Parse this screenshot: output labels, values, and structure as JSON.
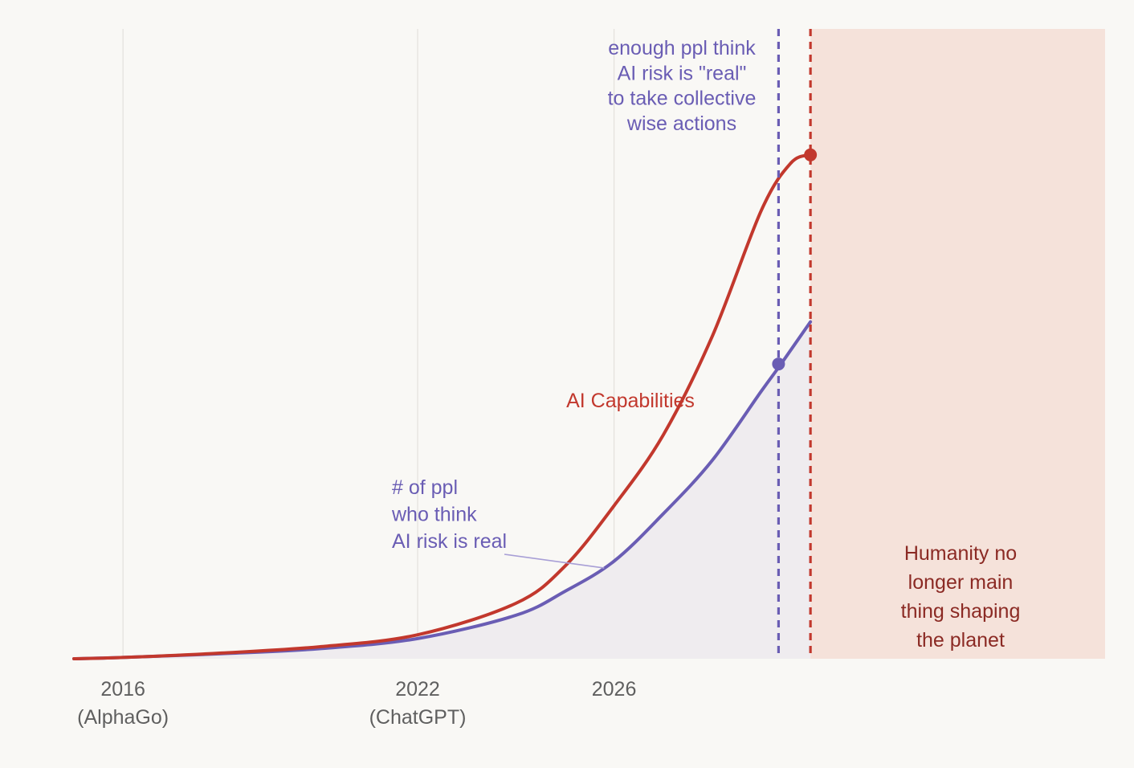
{
  "chart_data": {
    "type": "line",
    "title": "",
    "xlabel": "",
    "ylabel": "",
    "xlim": [
      2015,
      2036
    ],
    "ylim": [
      0,
      100
    ],
    "grid": "vertical-only",
    "colors": {
      "background": "#f9f8f5",
      "grid": "#e3e1dd",
      "capabilities": "#c2382d",
      "awareness": "#6a5db4",
      "awareness_fill": "#efecef",
      "threshold_region": "#f5e2da",
      "tick_text": "#5f5f5f",
      "region_text": "#8b2a24"
    },
    "x_ticks": [
      {
        "value": 2016,
        "label": "2016",
        "sublabel": "(AlphaGo)"
      },
      {
        "value": 2022,
        "label": "2022",
        "sublabel": "(ChatGPT)"
      },
      {
        "value": 2026,
        "label": "2026",
        "sublabel": ""
      }
    ],
    "series": [
      {
        "name": "AI Capabilities",
        "color": "#c2382d",
        "x": [
          2015,
          2016,
          2018,
          2020,
          2022,
          2024,
          2025,
          2026,
          2027,
          2028,
          2029,
          2029.6,
          2030
        ],
        "values": [
          0,
          0.2,
          0.9,
          1.9,
          3.8,
          8.8,
          14.7,
          24.3,
          35.5,
          51.2,
          71.2,
          78.7,
          80
        ]
      },
      {
        "name": "# of ppl who think AI risk is real",
        "color": "#6a5db4",
        "filled": true,
        "x": [
          2015,
          2016,
          2018,
          2020,
          2022,
          2024,
          2025,
          2026,
          2027,
          2028,
          2029,
          2029.4,
          2030
        ],
        "values": [
          0,
          0.2,
          0.8,
          1.6,
          3.2,
          6.9,
          10.7,
          15.5,
          23.0,
          31.5,
          42.5,
          46.8,
          53.5
        ]
      }
    ],
    "markers": [
      {
        "series": "AI Capabilities",
        "x": 2030,
        "y": 80
      },
      {
        "series": "# of ppl who think AI risk is real",
        "x": 2029.35,
        "y": 46.8
      }
    ],
    "vlines": [
      {
        "x": 2029.35,
        "color": "#6a5db4",
        "style": "dashed",
        "label": "awareness threshold"
      },
      {
        "x": 2030,
        "color": "#c2382d",
        "style": "dashed",
        "label": "capability threshold"
      }
    ],
    "shaded_region": {
      "x_start": 2030,
      "x_end": 2036,
      "label": "Humanity no longer main thing shaping the planet"
    },
    "annotations": {
      "threshold_lines": [
        "enough ppl think",
        "AI risk is \"real\"",
        "to take collective",
        "wise actions"
      ],
      "capabilities": "AI Capabilities",
      "awareness_lines": [
        "# of ppl",
        "who think",
        "AI risk is real"
      ],
      "region_lines": [
        "Humanity no",
        "longer main",
        "thing shaping",
        "the planet"
      ]
    }
  }
}
